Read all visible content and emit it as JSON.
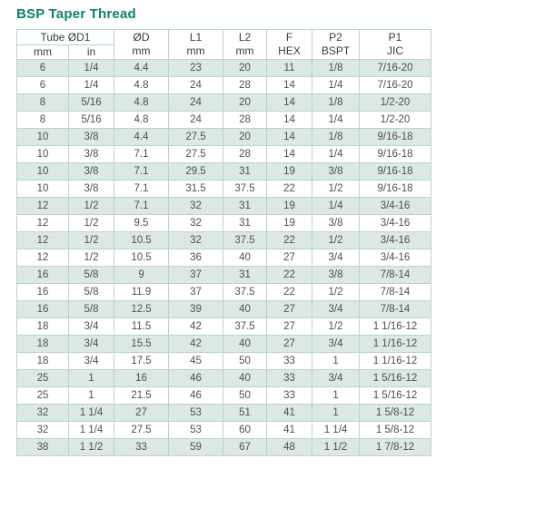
{
  "title": "BSP Taper Thread",
  "colors": {
    "title": "#0f8068",
    "row_shaded": "#dce8e3",
    "row_white": "#ffffff",
    "border": "#bdd2cb",
    "text": "#4f4f4f"
  },
  "table": {
    "header": {
      "group_label": "Tube ØD1",
      "sub_labels": [
        "mm",
        "in"
      ],
      "columns": [
        {
          "line1": "ØD",
          "line2": "mm"
        },
        {
          "line1": "L1",
          "line2": "mm"
        },
        {
          "line1": "L2",
          "line2": "mm"
        },
        {
          "line1": "F",
          "line2": "HEX"
        },
        {
          "line1": "P2",
          "line2": "BSPT"
        },
        {
          "line1": "P1",
          "line2": "JIC"
        }
      ]
    },
    "rows": [
      [
        "6",
        "1/4",
        "4.4",
        "23",
        "20",
        "11",
        "1/8",
        "7/16-20"
      ],
      [
        "6",
        "1/4",
        "4.8",
        "24",
        "28",
        "14",
        "1/4",
        "7/16-20"
      ],
      [
        "8",
        "5/16",
        "4.8",
        "24",
        "20",
        "14",
        "1/8",
        "1/2-20"
      ],
      [
        "8",
        "5/16",
        "4.8",
        "24",
        "28",
        "14",
        "1/4",
        "1/2-20"
      ],
      [
        "10",
        "3/8",
        "4.4",
        "27.5",
        "20",
        "14",
        "1/8",
        "9/16-18"
      ],
      [
        "10",
        "3/8",
        "7.1",
        "27.5",
        "28",
        "14",
        "1/4",
        "9/16-18"
      ],
      [
        "10",
        "3/8",
        "7.1",
        "29.5",
        "31",
        "19",
        "3/8",
        "9/16-18"
      ],
      [
        "10",
        "3/8",
        "7.1",
        "31.5",
        "37.5",
        "22",
        "1/2",
        "9/16-18"
      ],
      [
        "12",
        "1/2",
        "7.1",
        "32",
        "31",
        "19",
        "1/4",
        "3/4-16"
      ],
      [
        "12",
        "1/2",
        "9.5",
        "32",
        "31",
        "19",
        "3/8",
        "3/4-16"
      ],
      [
        "12",
        "1/2",
        "10.5",
        "32",
        "37.5",
        "22",
        "1/2",
        "3/4-16"
      ],
      [
        "12",
        "1/2",
        "10.5",
        "36",
        "40",
        "27",
        "3/4",
        "3/4-16"
      ],
      [
        "16",
        "5/8",
        "9",
        "37",
        "31",
        "22",
        "3/8",
        "7/8-14"
      ],
      [
        "16",
        "5/8",
        "11.9",
        "37",
        "37.5",
        "22",
        "1/2",
        "7/8-14"
      ],
      [
        "16",
        "5/8",
        "12.5",
        "39",
        "40",
        "27",
        "3/4",
        "7/8-14"
      ],
      [
        "18",
        "3/4",
        "11.5",
        "42",
        "37.5",
        "27",
        "1/2",
        "1 1/16-12"
      ],
      [
        "18",
        "3/4",
        "15.5",
        "42",
        "40",
        "27",
        "3/4",
        "1 1/16-12"
      ],
      [
        "18",
        "3/4",
        "17.5",
        "45",
        "50",
        "33",
        "1",
        "1 1/16-12"
      ],
      [
        "25",
        "1",
        "16",
        "46",
        "40",
        "33",
        "3/4",
        "1 5/16-12"
      ],
      [
        "25",
        "1",
        "21.5",
        "46",
        "50",
        "33",
        "1",
        "1 5/16-12"
      ],
      [
        "32",
        "1 1/4",
        "27",
        "53",
        "51",
        "41",
        "1",
        "1 5/8-12"
      ],
      [
        "32",
        "1 1/4",
        "27.5",
        "53",
        "60",
        "41",
        "1 1/4",
        "1 5/8-12"
      ],
      [
        "38",
        "1 1/2",
        "33",
        "59",
        "67",
        "48",
        "1 1/2",
        "1 7/8-12"
      ]
    ]
  }
}
